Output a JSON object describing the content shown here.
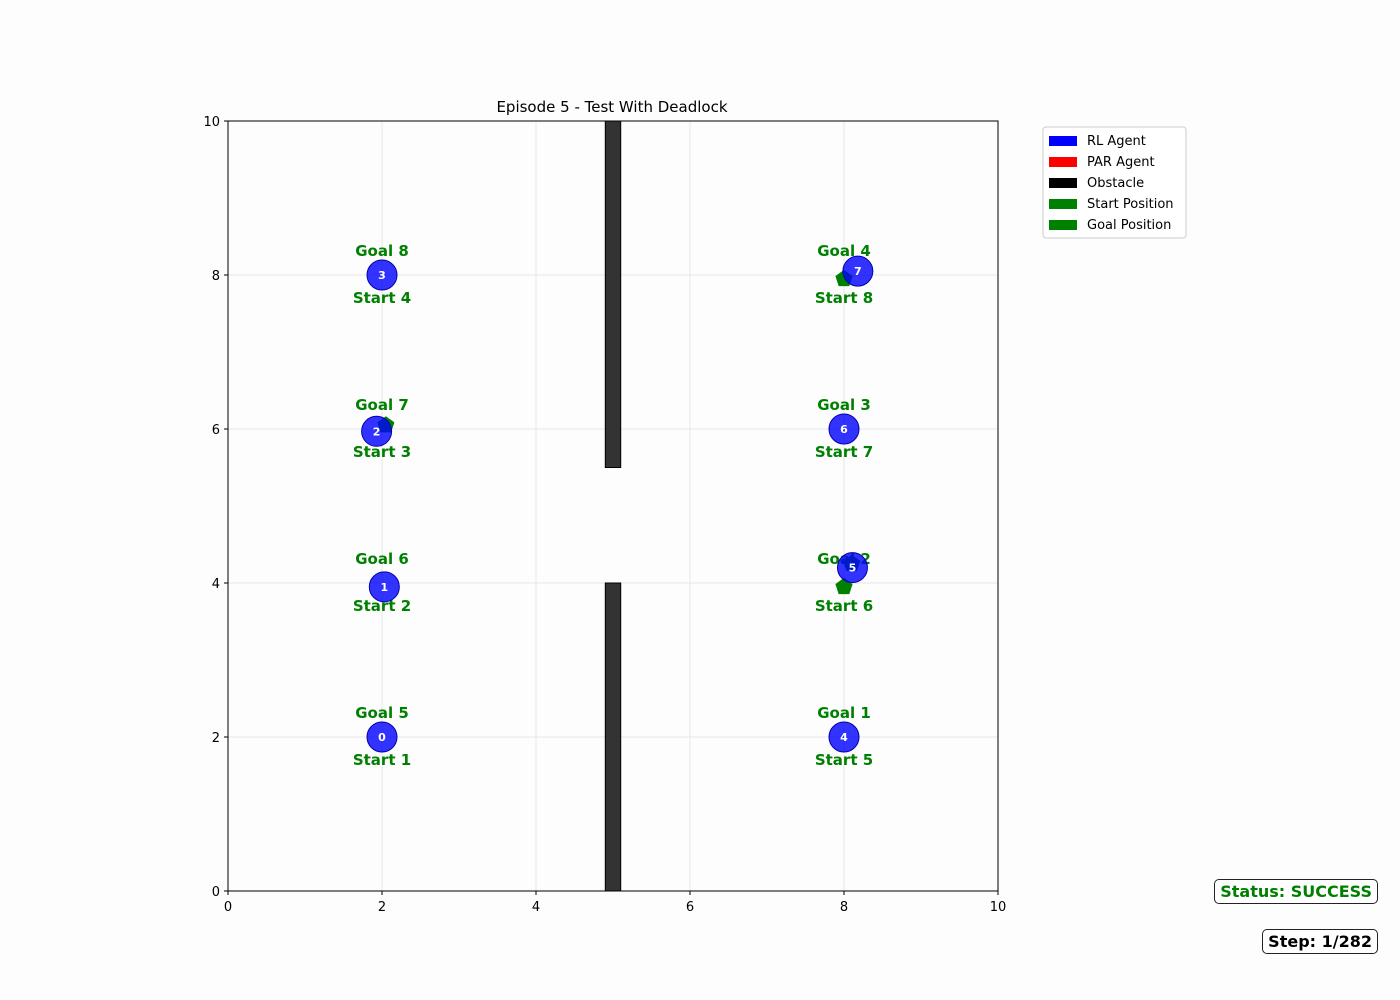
{
  "chart_data": {
    "type": "scatter",
    "title": "Episode 5 - Test With Deadlock",
    "xlim": [
      0,
      10
    ],
    "ylim": [
      0,
      10
    ],
    "xticks": [
      0,
      2,
      4,
      6,
      8,
      10
    ],
    "yticks": [
      0,
      2,
      4,
      6,
      8,
      10
    ],
    "grid": true,
    "legend_position": "upper-right-outside",
    "legend": [
      {
        "label": "RL Agent",
        "color": "#0000ff"
      },
      {
        "label": "PAR Agent",
        "color": "#ff0000"
      },
      {
        "label": "Obstacle",
        "color": "#000000"
      },
      {
        "label": "Start Position",
        "color": "#008000"
      },
      {
        "label": "Goal Position",
        "color": "#008000"
      }
    ],
    "obstacles": [
      {
        "x0": 4.9,
        "x1": 5.1,
        "y0": 5.5,
        "y1": 10.0
      },
      {
        "x0": 4.9,
        "x1": 5.1,
        "y0": 0.0,
        "y1": 4.0
      }
    ],
    "position_labels": [
      {
        "x": 2,
        "y": 2,
        "goal": "Goal 5",
        "start": "Start 1"
      },
      {
        "x": 2,
        "y": 4,
        "goal": "Goal 6",
        "start": "Start 2"
      },
      {
        "x": 2,
        "y": 6,
        "goal": "Goal 7",
        "start": "Start 3"
      },
      {
        "x": 2,
        "y": 8,
        "goal": "Goal 8",
        "start": "Start 4"
      },
      {
        "x": 8,
        "y": 2,
        "goal": "Goal 1",
        "start": "Start 5"
      },
      {
        "x": 8,
        "y": 4,
        "goal": "Goal 2",
        "start": "Start 6"
      },
      {
        "x": 8,
        "y": 6,
        "goal": "Goal 3",
        "start": "Start 7"
      },
      {
        "x": 8,
        "y": 8,
        "goal": "Goal 4",
        "start": "Start 8"
      }
    ],
    "markers": [
      {
        "x": 2.05,
        "y": 6.05
      },
      {
        "x": 8.0,
        "y": 7.95
      },
      {
        "x": 8.0,
        "y": 3.95
      },
      {
        "x": 8.1,
        "y": 4.25
      }
    ],
    "agents": [
      {
        "id": "0",
        "x": 2.0,
        "y": 2.0
      },
      {
        "id": "1",
        "x": 2.03,
        "y": 3.95
      },
      {
        "id": "2",
        "x": 1.93,
        "y": 5.97
      },
      {
        "id": "3",
        "x": 2.0,
        "y": 8.0
      },
      {
        "id": "4",
        "x": 8.0,
        "y": 2.0
      },
      {
        "id": "5",
        "x": 8.11,
        "y": 4.2
      },
      {
        "id": "6",
        "x": 8.0,
        "y": 6.0
      },
      {
        "id": "7",
        "x": 8.18,
        "y": 8.05
      }
    ],
    "colors": {
      "agent": "#0000ff",
      "label": "#008000",
      "obstacle": "#333333",
      "grid": "#e6e6e6"
    }
  },
  "status": {
    "text": "Status: SUCCESS",
    "color": "#008000"
  },
  "step": {
    "text": "Step: 1/282"
  }
}
